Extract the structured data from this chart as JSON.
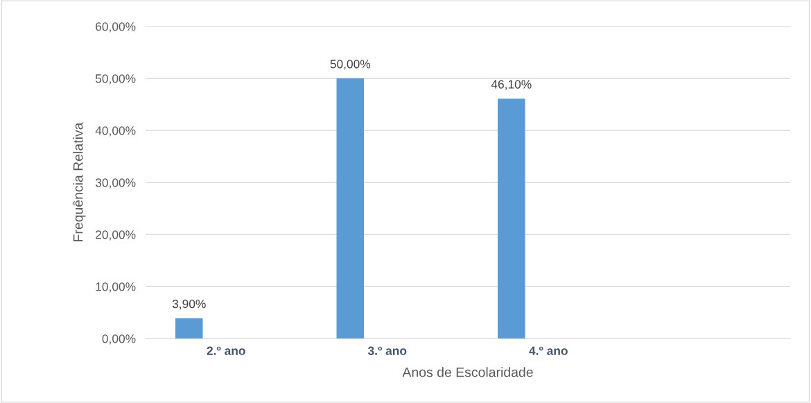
{
  "chart_data": {
    "type": "bar",
    "xlabel": "Anos de Escolaridade",
    "ylabel": "Frequência Relativa",
    "categories": [
      "2.º ano",
      "3.º ano",
      "4.º ano",
      null
    ],
    "values": [
      3.9,
      50.0,
      46.1,
      null
    ],
    "value_labels": [
      "3,90%",
      "50,00%",
      "46,10%",
      null
    ],
    "color": "#5b9bd5",
    "ylim": [
      0,
      60
    ],
    "yticks": [
      {
        "value": 0,
        "label": "0,00%"
      },
      {
        "value": 10,
        "label": "10,00%"
      },
      {
        "value": 20,
        "label": "20,00%"
      },
      {
        "value": 30,
        "label": "30,00%"
      },
      {
        "value": 40,
        "label": "40,00%"
      },
      {
        "value": 50,
        "label": "50,00%"
      },
      {
        "value": 60,
        "label": "60,00%"
      }
    ],
    "grid": "y",
    "legend": false
  }
}
